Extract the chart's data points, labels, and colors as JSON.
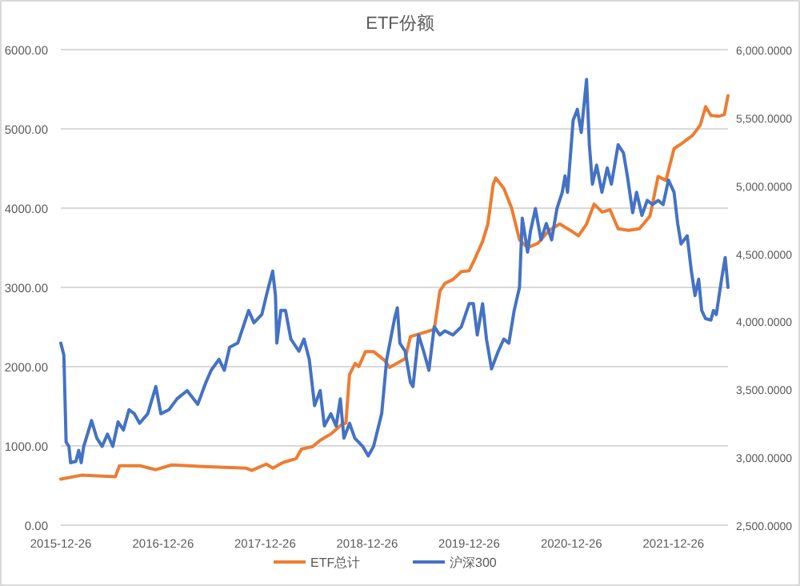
{
  "chart_data": {
    "type": "line",
    "title": "ETF份额",
    "legend": "bottom",
    "grid": "y",
    "line_style": "solid",
    "marker": "none",
    "xlim": [
      "2015-12-26",
      "2022-07-09"
    ],
    "xticks": [
      "2015-12-26",
      "2016-12-26",
      "2017-12-26",
      "2018-12-26",
      "2019-12-26",
      "2020-12-26",
      "2021-12-26"
    ],
    "ylim": [
      0,
      6000
    ],
    "yticks": [
      {
        "value": 0,
        "label": "0.00"
      },
      {
        "value": 1000,
        "label": "1000.00"
      },
      {
        "value": 2000,
        "label": "2000.00"
      },
      {
        "value": 3000,
        "label": "3000.00"
      },
      {
        "value": 4000,
        "label": "4000.00"
      },
      {
        "value": 5000,
        "label": "5000.00"
      },
      {
        "value": 6000,
        "label": "6000.00"
      }
    ],
    "y2lim": [
      2500,
      6000
    ],
    "y2ticks": [
      {
        "value": 2500,
        "label": "2,500.0000"
      },
      {
        "value": 3000,
        "label": "3,000.0000"
      },
      {
        "value": 3500,
        "label": "3,500.0000"
      },
      {
        "value": 4000,
        "label": "4,000.0000"
      },
      {
        "value": 4500,
        "label": "4,500.0000"
      },
      {
        "value": 5000,
        "label": "5,000.0000"
      },
      {
        "value": 5500,
        "label": "5,500.0000"
      },
      {
        "value": 6000,
        "label": "6,000.0000"
      }
    ],
    "series": [
      {
        "name": "ETF总计",
        "color": "#ed7d31",
        "x": [
          "2015-12-26",
          "2016-03-08",
          "2016-07-08",
          "2016-07-23",
          "2016-10-03",
          "2016-11-30",
          "2017-01-26",
          "2017-05-18",
          "2017-10-18",
          "2017-11-08",
          "2017-12-30",
          "2018-01-23",
          "2018-02-28",
          "2018-04-16",
          "2018-05-05",
          "2018-06-13",
          "2018-07-11",
          "2018-08-18",
          "2018-09-26",
          "2018-10-11",
          "2018-10-24",
          "2018-11-13",
          "2018-11-26",
          "2018-12-20",
          "2019-01-18",
          "2019-02-26",
          "2019-03-16",
          "2019-05-11",
          "2019-05-30",
          "2019-07-08",
          "2019-08-23",
          "2019-09-12",
          "2019-09-30",
          "2019-10-29",
          "2019-11-28",
          "2019-12-26",
          "2020-01-14",
          "2020-02-12",
          "2020-03-02",
          "2020-03-21",
          "2020-03-30",
          "2020-04-28",
          "2020-05-26",
          "2020-06-23",
          "2020-07-22",
          "2020-08-29",
          "2020-10-07",
          "2020-11-14",
          "2020-12-22",
          "2021-01-20",
          "2021-02-18",
          "2021-03-17",
          "2021-04-15",
          "2021-05-13",
          "2021-06-11",
          "2021-07-18",
          "2021-08-26",
          "2021-10-03",
          "2021-11-01",
          "2021-11-29",
          "2021-12-28",
          "2022-01-26",
          "2022-03-05",
          "2022-04-01",
          "2022-04-20",
          "2022-05-09",
          "2022-06-07",
          "2022-06-26",
          "2022-07-09"
        ],
        "values": [
          580,
          630,
          610,
          750,
          750,
          700,
          760,
          740,
          720,
          690,
          770,
          720,
          790,
          840,
          960,
          990,
          1070,
          1150,
          1270,
          1290,
          1900,
          2040,
          2000,
          2190,
          2190,
          2080,
          1990,
          2100,
          2380,
          2420,
          2470,
          2950,
          3050,
          3100,
          3200,
          3210,
          3350,
          3580,
          3800,
          4300,
          4380,
          4250,
          4000,
          3600,
          3500,
          3560,
          3720,
          3800,
          3720,
          3650,
          3800,
          4050,
          3950,
          3980,
          3740,
          3720,
          3740,
          3900,
          4400,
          4350,
          4750,
          4820,
          4920,
          5050,
          5280,
          5170,
          5160,
          5180,
          5420
        ]
      },
      {
        "name": "沪深300",
        "color": "#4472c4",
        "axis": "y2",
        "x": [
          "2015-12-26",
          "2016-01-06",
          "2016-01-14",
          "2016-01-24",
          "2016-01-30",
          "2016-02-18",
          "2016-02-28",
          "2016-03-08",
          "2016-03-17",
          "2016-04-04",
          "2016-04-14",
          "2016-05-03",
          "2016-05-22",
          "2016-06-10",
          "2016-06-29",
          "2016-07-18",
          "2016-08-06",
          "2016-08-26",
          "2016-09-14",
          "2016-10-03",
          "2016-11-01",
          "2016-11-30",
          "2016-12-18",
          "2017-01-16",
          "2017-02-14",
          "2017-03-22",
          "2017-04-29",
          "2017-05-28",
          "2017-06-16",
          "2017-07-14",
          "2017-08-02",
          "2017-08-21",
          "2017-09-19",
          "2017-10-28",
          "2017-11-16",
          "2017-12-14",
          "2018-01-03",
          "2018-01-22",
          "2018-02-01",
          "2018-02-06",
          "2018-02-20",
          "2018-03-09",
          "2018-03-28",
          "2018-04-26",
          "2018-05-14",
          "2018-06-02",
          "2018-06-21",
          "2018-07-11",
          "2018-07-26",
          "2018-08-18",
          "2018-09-06",
          "2018-09-21",
          "2018-10-04",
          "2018-10-24",
          "2018-11-12",
          "2018-12-10",
          "2018-12-30",
          "2019-01-18",
          "2019-02-16",
          "2019-03-06",
          "2019-04-03",
          "2019-04-13",
          "2019-04-22",
          "2019-05-11",
          "2019-05-30",
          "2019-06-08",
          "2019-06-28",
          "2019-07-16",
          "2019-08-04",
          "2019-08-23",
          "2019-09-12",
          "2019-09-30",
          "2019-10-29",
          "2019-11-28",
          "2019-12-26",
          "2020-01-10",
          "2020-01-24",
          "2020-02-12",
          "2020-02-26",
          "2020-03-15",
          "2020-04-08",
          "2020-04-28",
          "2020-05-16",
          "2020-06-04",
          "2020-06-23",
          "2020-07-03",
          "2020-07-22",
          "2020-08-01",
          "2020-08-19",
          "2020-09-08",
          "2020-09-27",
          "2020-10-16",
          "2020-11-04",
          "2020-11-23",
          "2020-12-03",
          "2020-12-12",
          "2021-01-01",
          "2021-01-16",
          "2021-01-30",
          "2021-02-18",
          "2021-02-28",
          "2021-03-11",
          "2021-03-26",
          "2021-04-14",
          "2021-05-03",
          "2021-05-18",
          "2021-06-11",
          "2021-06-30",
          "2021-07-14",
          "2021-08-02",
          "2021-08-16",
          "2021-09-04",
          "2021-09-23",
          "2021-10-12",
          "2021-11-01",
          "2021-11-19",
          "2021-12-08",
          "2021-12-28",
          "2022-01-10",
          "2022-01-22",
          "2022-02-13",
          "2022-02-28",
          "2022-03-13",
          "2022-03-26",
          "2022-04-06",
          "2022-04-20",
          "2022-05-09",
          "2022-05-18",
          "2022-05-28",
          "2022-06-16",
          "2022-06-29",
          "2022-07-09"
        ],
        "values": [
          3840,
          3750,
          3110,
          3080,
          2960,
          2970,
          3050,
          2960,
          3080,
          3200,
          3270,
          3140,
          3080,
          3170,
          3080,
          3260,
          3200,
          3350,
          3320,
          3250,
          3320,
          3520,
          3320,
          3350,
          3430,
          3490,
          3390,
          3550,
          3640,
          3720,
          3640,
          3810,
          3840,
          4080,
          3990,
          4050,
          4220,
          4370,
          4190,
          3840,
          4080,
          4080,
          3870,
          3780,
          3870,
          3720,
          3380,
          3490,
          3230,
          3320,
          3230,
          3430,
          3140,
          3250,
          3140,
          3080,
          3010,
          3080,
          3320,
          3720,
          4020,
          4100,
          3840,
          3780,
          3550,
          3520,
          3900,
          3780,
          3640,
          3960,
          3900,
          3930,
          3900,
          3960,
          4130,
          4130,
          3900,
          4130,
          3870,
          3650,
          3780,
          3870,
          3840,
          4080,
          4250,
          4760,
          4510,
          4660,
          4830,
          4600,
          4720,
          4600,
          4830,
          4950,
          5070,
          4950,
          5480,
          5560,
          5390,
          5780,
          5300,
          5010,
          5150,
          4950,
          5130,
          5010,
          5300,
          5240,
          5070,
          4800,
          4950,
          4780,
          4890,
          4860,
          4890,
          4860,
          5040,
          4950,
          4720,
          4570,
          4630,
          4370,
          4190,
          4310,
          4080,
          4020,
          4010,
          4080,
          4050,
          4310,
          4470,
          4250
        ]
      }
    ]
  }
}
